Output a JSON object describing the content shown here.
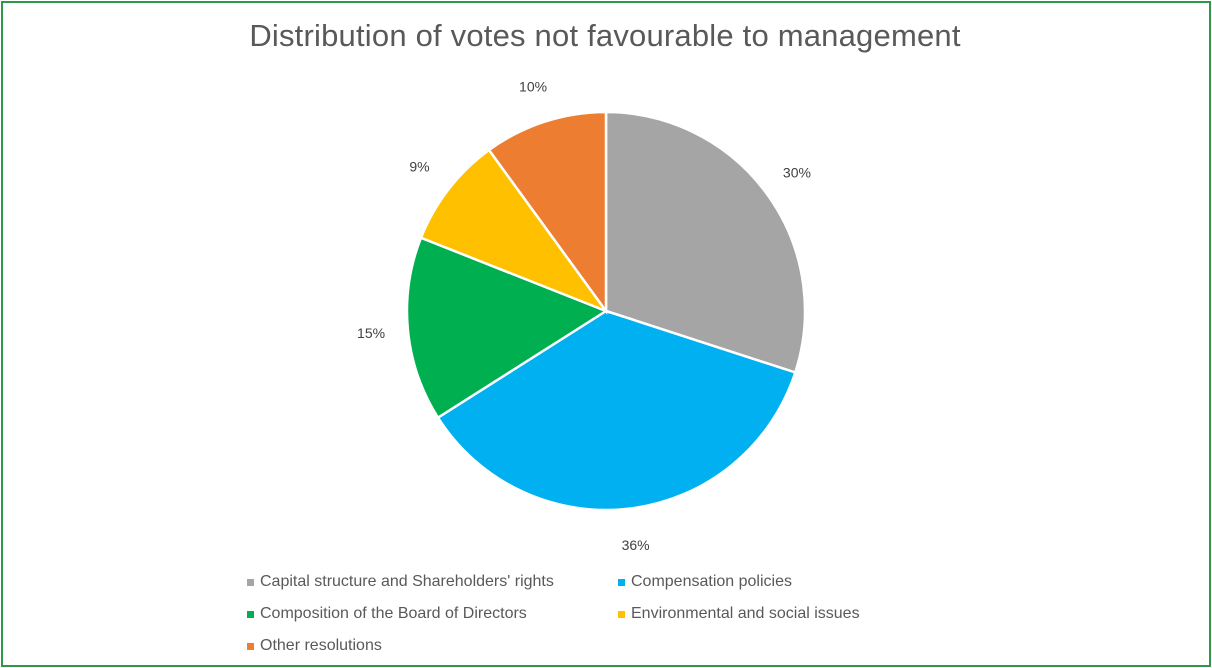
{
  "chart_data": {
    "type": "pie",
    "title": "Distribution of votes not favourable to management",
    "categories": [
      "Capital structure and Shareholders' rights",
      "Compensation policies",
      "Composition of the Board of Directors",
      "Environmental and social issues",
      "Other resolutions"
    ],
    "values": [
      30,
      36,
      15,
      9,
      10
    ],
    "data_labels": [
      "30%",
      "36%",
      "15%",
      "9%",
      "10%"
    ],
    "colors": [
      "#a5a5a5",
      "#00b0f0",
      "#00b050",
      "#ffc000",
      "#ed7d31"
    ],
    "legend_placement": "bottom"
  },
  "frame": {
    "border_color": "#2e9a47"
  }
}
